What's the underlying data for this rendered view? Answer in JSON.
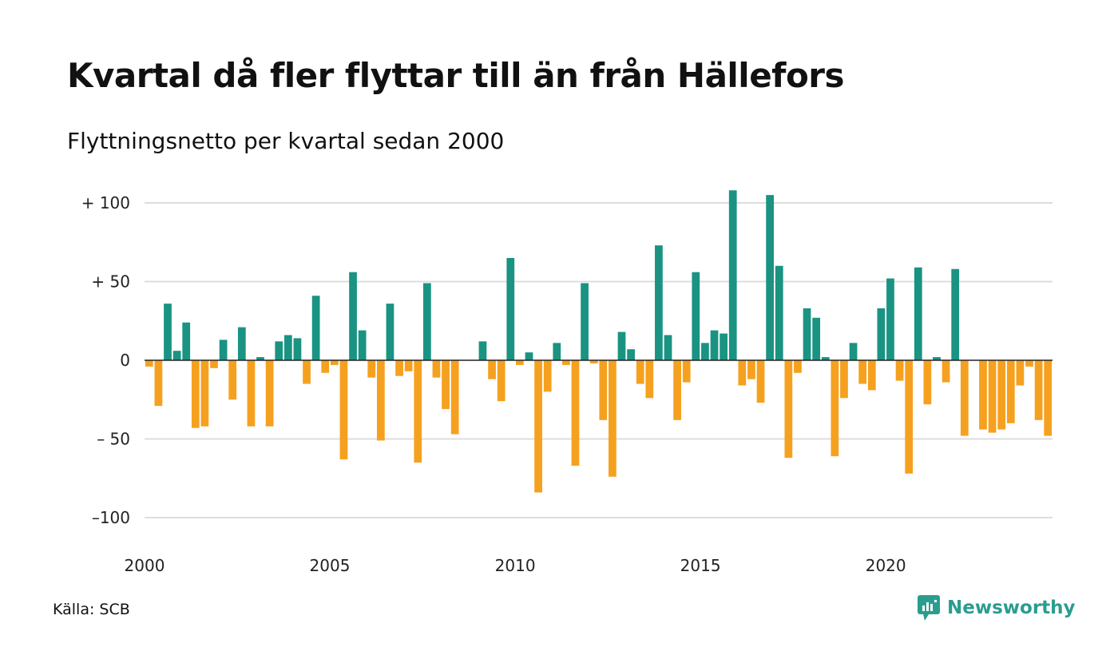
{
  "title": "Kvartal då fler flyttar till än från Hällefors",
  "subtitle": "Flyttningsnetto per kvartal sedan 2000",
  "source": "Källa: SCB",
  "brand": {
    "name": "Newsworthy",
    "icon": "newsworthy-logo-icon",
    "color": "#2a9d8f"
  },
  "chart_data": {
    "type": "bar",
    "x_start": "2000 Q1",
    "frequency": "quarterly",
    "values": [
      -4,
      -29,
      36,
      6,
      24,
      -43,
      -42,
      -5,
      13,
      -25,
      21,
      -42,
      2,
      -42,
      12,
      16,
      14,
      -15,
      41,
      -8,
      -3,
      -63,
      56,
      19,
      -11,
      -51,
      36,
      -10,
      -7,
      -65,
      49,
      -11,
      -31,
      -47,
      0,
      0,
      12,
      -12,
      -26,
      65,
      -3,
      5,
      -84,
      -20,
      11,
      -3,
      -67,
      49,
      -2,
      -38,
      -74,
      18,
      7,
      -15,
      -24,
      73,
      16,
      -38,
      -14,
      56,
      11,
      19,
      17,
      108,
      -16,
      -12,
      -27,
      105,
      60,
      -62,
      -8,
      33,
      27,
      2,
      -61,
      -24,
      11,
      -15,
      -19,
      33,
      52,
      -13,
      -72,
      59,
      -28,
      2,
      -14,
      58,
      -48,
      0,
      -44,
      -46,
      -44,
      -40,
      -16,
      -4,
      -38,
      -48
    ],
    "y_ticks": [
      100,
      50,
      0,
      -50,
      -100
    ],
    "y_tick_labels": [
      "+ 100",
      "+  50",
      "0",
      "– 50",
      "–100"
    ],
    "x_ticks": [
      "2000",
      "2005",
      "2010",
      "2015",
      "2020"
    ],
    "ylim": [
      -115,
      112
    ],
    "grid": true,
    "positive_color": "#1a9382",
    "negative_color": "#f5a11f",
    "grid_color": "#dddddd",
    "zero_line_color": "#222222"
  }
}
